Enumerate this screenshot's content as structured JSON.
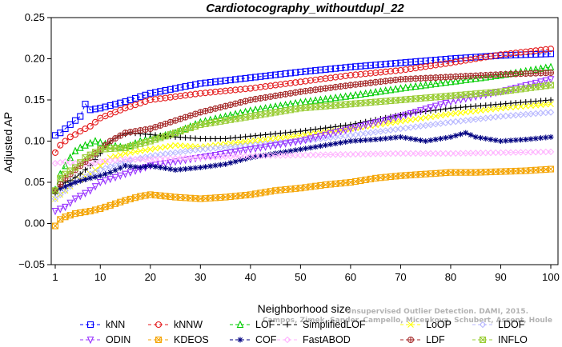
{
  "watermark": {
    "line1": "Unsupervised Outlier Detection. DAMI, 2015.",
    "line2": "Campos, Zimek, Sander, Campello, Micenkova, Schubert, Assent, Houle"
  },
  "chart_data": {
    "type": "line",
    "title": "Cardiotocography_withoutdupl_22",
    "xlabel": "Neighborhood size",
    "ylabel": "Adjusted AP",
    "xlim": [
      1,
      100
    ],
    "ylim": [
      -0.05,
      0.25
    ],
    "xticks": [
      1,
      10,
      20,
      30,
      40,
      50,
      60,
      70,
      80,
      90,
      100
    ],
    "yticks": [
      -0.05,
      0.0,
      0.05,
      0.1,
      0.15,
      0.2,
      0.25
    ],
    "ytick_labels": [
      "−0.05",
      "0.00",
      "0.05",
      "0.10",
      "0.15",
      "0.20",
      "0.25"
    ],
    "grid": false,
    "legend_position": "bottom",
    "series": [
      {
        "name": "kNN",
        "color": "#0000ff",
        "marker": "square",
        "points": [
          [
            1,
            0.107
          ],
          [
            2,
            0.11
          ],
          [
            3,
            0.115
          ],
          [
            4,
            0.12
          ],
          [
            5,
            0.125
          ],
          [
            6,
            0.13
          ],
          [
            7,
            0.145
          ],
          [
            8,
            0.138
          ],
          [
            10,
            0.14
          ],
          [
            15,
            0.148
          ],
          [
            20,
            0.158
          ],
          [
            30,
            0.17
          ],
          [
            40,
            0.177
          ],
          [
            50,
            0.184
          ],
          [
            60,
            0.19
          ],
          [
            70,
            0.195
          ],
          [
            80,
            0.2
          ],
          [
            90,
            0.204
          ],
          [
            100,
            0.206
          ]
        ]
      },
      {
        "name": "kNNW",
        "color": "#e41a1c",
        "marker": "circle",
        "points": [
          [
            1,
            0.086
          ],
          [
            2,
            0.095
          ],
          [
            3,
            0.1
          ],
          [
            4,
            0.105
          ],
          [
            5,
            0.108
          ],
          [
            6,
            0.112
          ],
          [
            7,
            0.115
          ],
          [
            8,
            0.118
          ],
          [
            10,
            0.128
          ],
          [
            15,
            0.14
          ],
          [
            20,
            0.15
          ],
          [
            30,
            0.158
          ],
          [
            40,
            0.164
          ],
          [
            50,
            0.172
          ],
          [
            60,
            0.18
          ],
          [
            70,
            0.186
          ],
          [
            80,
            0.195
          ],
          [
            90,
            0.205
          ],
          [
            100,
            0.212
          ]
        ]
      },
      {
        "name": "LOF",
        "color": "#00cc00",
        "marker": "triangle",
        "points": [
          [
            1,
            0.041
          ],
          [
            2,
            0.06
          ],
          [
            3,
            0.07
          ],
          [
            4,
            0.08
          ],
          [
            5,
            0.088
          ],
          [
            6,
            0.092
          ],
          [
            7,
            0.095
          ],
          [
            9,
            0.1
          ],
          [
            12,
            0.095
          ],
          [
            15,
            0.092
          ],
          [
            18,
            0.1
          ],
          [
            20,
            0.103
          ],
          [
            25,
            0.11
          ],
          [
            30,
            0.123
          ],
          [
            40,
            0.137
          ],
          [
            50,
            0.147
          ],
          [
            60,
            0.155
          ],
          [
            70,
            0.164
          ],
          [
            80,
            0.172
          ],
          [
            90,
            0.18
          ],
          [
            100,
            0.19
          ]
        ]
      },
      {
        "name": "SimplifiedLOF",
        "color": "#000000",
        "marker": "plus",
        "points": [
          [
            1,
            0.036
          ],
          [
            2,
            0.045
          ],
          [
            3,
            0.05
          ],
          [
            4,
            0.052
          ],
          [
            6,
            0.06
          ],
          [
            8,
            0.07
          ],
          [
            10,
            0.085
          ],
          [
            12,
            0.1
          ],
          [
            14,
            0.107
          ],
          [
            16,
            0.11
          ],
          [
            20,
            0.108
          ],
          [
            25,
            0.105
          ],
          [
            30,
            0.103
          ],
          [
            35,
            0.103
          ],
          [
            40,
            0.106
          ],
          [
            50,
            0.112
          ],
          [
            60,
            0.12
          ],
          [
            70,
            0.132
          ],
          [
            80,
            0.14
          ],
          [
            90,
            0.145
          ],
          [
            100,
            0.15
          ]
        ]
      },
      {
        "name": "LoOP",
        "color": "#ffff00",
        "marker": "x",
        "points": [
          [
            1,
            0.03
          ],
          [
            3,
            0.04
          ],
          [
            5,
            0.05
          ],
          [
            8,
            0.06
          ],
          [
            10,
            0.07
          ],
          [
            12,
            0.08
          ],
          [
            15,
            0.085
          ],
          [
            20,
            0.09
          ],
          [
            25,
            0.095
          ],
          [
            30,
            0.093
          ],
          [
            40,
            0.1
          ],
          [
            50,
            0.107
          ],
          [
            60,
            0.115
          ],
          [
            70,
            0.124
          ],
          [
            80,
            0.133
          ],
          [
            90,
            0.14
          ],
          [
            100,
            0.145
          ]
        ]
      },
      {
        "name": "LDOF",
        "color": "#b8b8ff",
        "marker": "diamond",
        "points": [
          [
            1,
            0.03
          ],
          [
            3,
            0.04
          ],
          [
            5,
            0.05
          ],
          [
            8,
            0.06
          ],
          [
            10,
            0.065
          ],
          [
            15,
            0.075
          ],
          [
            20,
            0.082
          ],
          [
            30,
            0.09
          ],
          [
            40,
            0.095
          ],
          [
            50,
            0.1
          ],
          [
            60,
            0.107
          ],
          [
            70,
            0.115
          ],
          [
            80,
            0.123
          ],
          [
            90,
            0.13
          ],
          [
            100,
            0.135
          ]
        ]
      },
      {
        "name": "ODIN",
        "color": "#9933ff",
        "marker": "triangle-down",
        "points": [
          [
            1,
            0.015
          ],
          [
            3,
            0.02
          ],
          [
            5,
            0.03
          ],
          [
            8,
            0.04
          ],
          [
            10,
            0.05
          ],
          [
            15,
            0.06
          ],
          [
            20,
            0.07
          ],
          [
            30,
            0.08
          ],
          [
            40,
            0.09
          ],
          [
            50,
            0.1
          ],
          [
            60,
            0.115
          ],
          [
            70,
            0.13
          ],
          [
            80,
            0.148
          ],
          [
            90,
            0.16
          ],
          [
            100,
            0.175
          ]
        ]
      },
      {
        "name": "KDEOS",
        "color": "#f4a300",
        "marker": "square-x",
        "points": [
          [
            1,
            -0.003
          ],
          [
            2,
            0.005
          ],
          [
            3,
            0.008
          ],
          [
            5,
            0.012
          ],
          [
            8,
            0.015
          ],
          [
            10,
            0.018
          ],
          [
            12,
            0.022
          ],
          [
            15,
            0.028
          ],
          [
            18,
            0.033
          ],
          [
            20,
            0.035
          ],
          [
            25,
            0.032
          ],
          [
            30,
            0.03
          ],
          [
            35,
            0.032
          ],
          [
            40,
            0.035
          ],
          [
            45,
            0.04
          ],
          [
            50,
            0.043
          ],
          [
            55,
            0.047
          ],
          [
            60,
            0.05
          ],
          [
            65,
            0.055
          ],
          [
            70,
            0.058
          ],
          [
            75,
            0.06
          ],
          [
            80,
            0.062
          ],
          [
            85,
            0.062
          ],
          [
            90,
            0.063
          ],
          [
            95,
            0.064
          ],
          [
            100,
            0.066
          ]
        ]
      },
      {
        "name": "COF",
        "color": "#000080",
        "marker": "asterisk",
        "points": [
          [
            1,
            0.04
          ],
          [
            3,
            0.045
          ],
          [
            5,
            0.05
          ],
          [
            8,
            0.055
          ],
          [
            10,
            0.058
          ],
          [
            12,
            0.062
          ],
          [
            15,
            0.07
          ],
          [
            18,
            0.068
          ],
          [
            20,
            0.07
          ],
          [
            25,
            0.065
          ],
          [
            30,
            0.068
          ],
          [
            35,
            0.072
          ],
          [
            40,
            0.08
          ],
          [
            45,
            0.085
          ],
          [
            50,
            0.09
          ],
          [
            55,
            0.095
          ],
          [
            60,
            0.1
          ],
          [
            65,
            0.102
          ],
          [
            70,
            0.105
          ],
          [
            75,
            0.1
          ],
          [
            80,
            0.105
          ],
          [
            83,
            0.11
          ],
          [
            85,
            0.105
          ],
          [
            90,
            0.1
          ],
          [
            95,
            0.102
          ],
          [
            100,
            0.105
          ]
        ]
      },
      {
        "name": "FastABOD",
        "color": "#ffb3ff",
        "marker": "diamond",
        "points": [
          [
            1,
            0.073
          ],
          [
            3,
            0.075
          ],
          [
            5,
            0.073
          ],
          [
            8,
            0.072
          ],
          [
            10,
            0.075
          ],
          [
            15,
            0.078
          ],
          [
            20,
            0.078
          ],
          [
            30,
            0.08
          ],
          [
            40,
            0.082
          ],
          [
            50,
            0.083
          ],
          [
            60,
            0.084
          ],
          [
            70,
            0.085
          ],
          [
            80,
            0.085
          ],
          [
            90,
            0.086
          ],
          [
            100,
            0.087
          ]
        ]
      },
      {
        "name": "LDF",
        "color": "#a52a2a",
        "marker": "circle-plus",
        "points": [
          [
            1,
            0.04
          ],
          [
            3,
            0.055
          ],
          [
            5,
            0.065
          ],
          [
            8,
            0.08
          ],
          [
            10,
            0.09
          ],
          [
            12,
            0.1
          ],
          [
            15,
            0.11
          ],
          [
            20,
            0.115
          ],
          [
            25,
            0.125
          ],
          [
            30,
            0.135
          ],
          [
            40,
            0.15
          ],
          [
            50,
            0.16
          ],
          [
            60,
            0.168
          ],
          [
            70,
            0.175
          ],
          [
            80,
            0.178
          ],
          [
            90,
            0.181
          ],
          [
            100,
            0.183
          ]
        ]
      },
      {
        "name": "INFLO",
        "color": "#99cc33",
        "marker": "square-x",
        "points": [
          [
            1,
            0.04
          ],
          [
            2,
            0.055
          ],
          [
            3,
            0.06
          ],
          [
            5,
            0.068
          ],
          [
            7,
            0.08
          ],
          [
            10,
            0.09
          ],
          [
            15,
            0.092
          ],
          [
            20,
            0.1
          ],
          [
            30,
            0.12
          ],
          [
            40,
            0.13
          ],
          [
            50,
            0.14
          ],
          [
            60,
            0.145
          ],
          [
            70,
            0.15
          ],
          [
            80,
            0.155
          ],
          [
            90,
            0.16
          ],
          [
            100,
            0.168
          ]
        ]
      }
    ]
  }
}
